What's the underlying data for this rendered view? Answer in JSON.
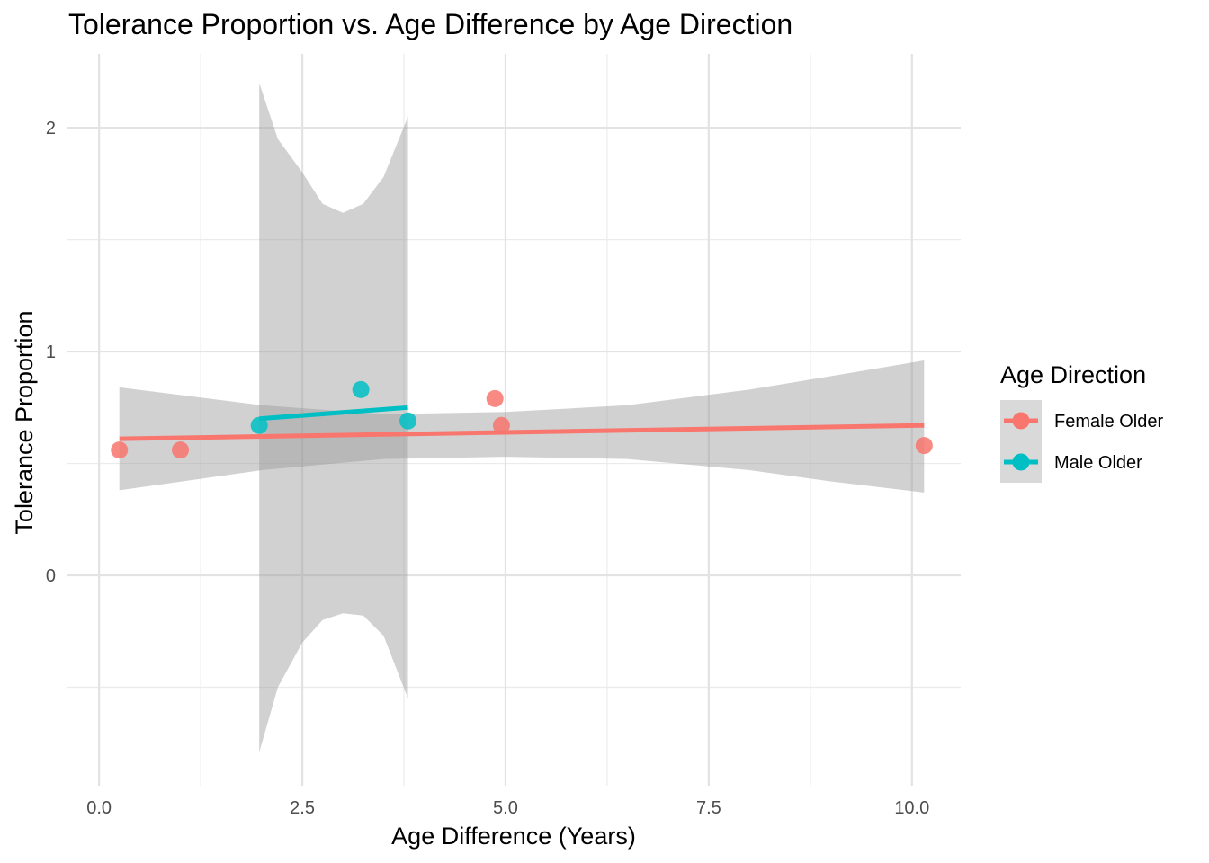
{
  "chart_data": {
    "type": "scatter",
    "title": "Tolerance Proportion vs. Age Difference by Age Direction",
    "xlabel": "Age Difference (Years)",
    "ylabel": "Tolerance Proportion",
    "xlim": [
      -0.4,
      10.6
    ],
    "ylim": [
      -0.94,
      2.33
    ],
    "x_ticks": [
      0,
      2.5,
      5,
      7.5,
      10
    ],
    "x_tick_labels": [
      "0.0",
      "2.5",
      "5.0",
      "7.5",
      "10.0"
    ],
    "x_minor_ticks": [
      1.25,
      3.75,
      6.25,
      8.75
    ],
    "y_ticks": [
      0,
      1,
      2
    ],
    "y_tick_labels": [
      "0",
      "1",
      "2"
    ],
    "y_minor_ticks": [
      -0.5,
      0.5,
      1.5
    ],
    "grid": true,
    "legend": {
      "title": "Age Direction",
      "position": "right"
    },
    "series": [
      {
        "name": "Female Older",
        "color": "#F8766D",
        "points": [
          {
            "x": 0.25,
            "y": 0.56
          },
          {
            "x": 1.0,
            "y": 0.56
          },
          {
            "x": 4.87,
            "y": 0.79
          },
          {
            "x": 4.95,
            "y": 0.67
          },
          {
            "x": 10.15,
            "y": 0.58
          }
        ],
        "fit_line": [
          [
            0.25,
            0.61
          ],
          [
            10.15,
            0.67
          ]
        ],
        "confidence_band": [
          [
            0.25,
            0.38,
            0.84
          ],
          [
            2.0,
            0.47,
            0.76
          ],
          [
            3.5,
            0.52,
            0.72
          ],
          [
            5.0,
            0.53,
            0.73
          ],
          [
            6.5,
            0.52,
            0.76
          ],
          [
            8.0,
            0.47,
            0.83
          ],
          [
            9.0,
            0.42,
            0.89
          ],
          [
            10.15,
            0.37,
            0.96
          ]
        ]
      },
      {
        "name": "Male Older",
        "color": "#00BFC4",
        "points": [
          {
            "x": 1.97,
            "y": 0.67
          },
          {
            "x": 3.22,
            "y": 0.83
          },
          {
            "x": 3.8,
            "y": 0.69
          }
        ],
        "fit_line": [
          [
            1.97,
            0.7
          ],
          [
            3.8,
            0.75
          ]
        ],
        "confidence_band": [
          [
            1.97,
            -0.79,
            2.2
          ],
          [
            2.2,
            -0.5,
            1.95
          ],
          [
            2.5,
            -0.3,
            1.8
          ],
          [
            2.75,
            -0.2,
            1.66
          ],
          [
            3.0,
            -0.17,
            1.62
          ],
          [
            3.25,
            -0.18,
            1.66
          ],
          [
            3.5,
            -0.27,
            1.78
          ],
          [
            3.8,
            -0.55,
            2.05
          ]
        ]
      }
    ]
  }
}
